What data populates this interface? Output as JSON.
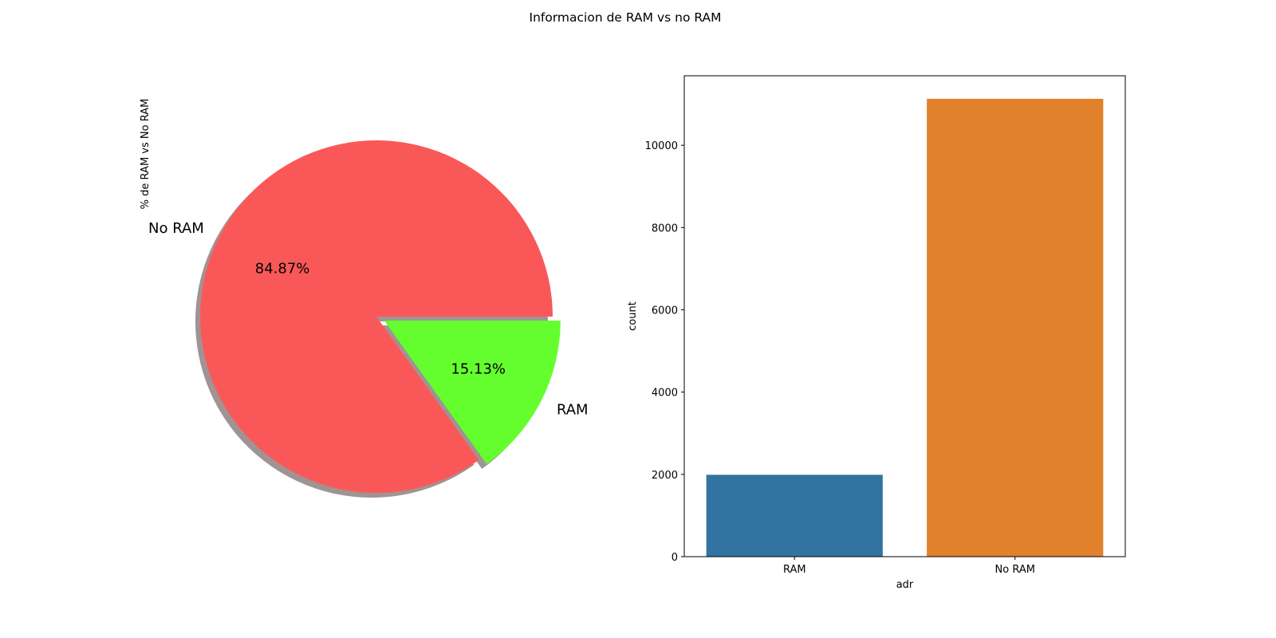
{
  "figure": {
    "title": "Informacion de RAM vs no RAM"
  },
  "chart_data": [
    {
      "type": "pie",
      "ylabel": "% de RAM vs No RAM",
      "labels": [
        "No RAM",
        "RAM"
      ],
      "values": [
        84.87,
        15.13
      ],
      "pct_labels": [
        "84.87%",
        "15.13%"
      ],
      "colors": [
        "#fa5858",
        "#64fe2e"
      ],
      "explode": [
        0,
        0.05
      ],
      "shadow": true,
      "startangle": 0
    },
    {
      "type": "bar",
      "categories": [
        "RAM",
        "No RAM"
      ],
      "values": [
        1990,
        11130
      ],
      "colors": [
        "#3274a1",
        "#e1812c"
      ],
      "xlabel": "adr",
      "ylabel": "count",
      "ylim": [
        0,
        11690
      ],
      "yticks": [
        0,
        2000,
        4000,
        6000,
        8000,
        10000
      ],
      "grid": false
    }
  ]
}
